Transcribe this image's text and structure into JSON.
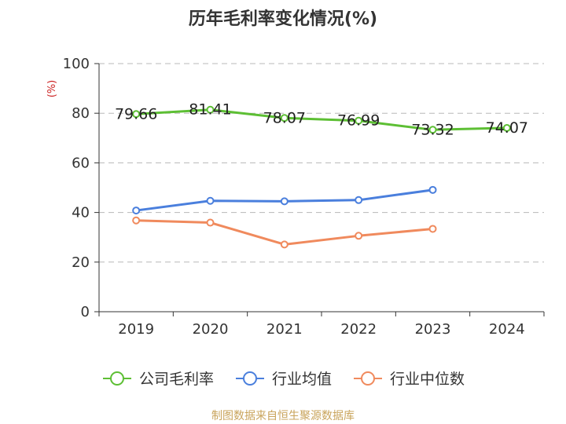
{
  "chart_data": {
    "type": "line",
    "title": "历年毛利率变化情况(%)",
    "ylabel": "(%)",
    "xlabel": "",
    "categories": [
      "2019",
      "2020",
      "2021",
      "2022",
      "2023",
      "2024"
    ],
    "ylim": [
      0,
      100
    ],
    "yticks": [
      0,
      20,
      40,
      60,
      80,
      100
    ],
    "grid": true,
    "legend_position": "bottom",
    "series": [
      {
        "name": "公司毛利率",
        "color": "#5dbf34",
        "values": [
          79.66,
          81.41,
          78.07,
          76.99,
          73.32,
          74.07
        ],
        "show_labels": true
      },
      {
        "name": "行业均值",
        "color": "#4a7fdd",
        "values": [
          40.8,
          44.7,
          44.5,
          45.0,
          49.1,
          null
        ],
        "show_labels": false
      },
      {
        "name": "行业中位数",
        "color": "#f08a5d",
        "values": [
          36.8,
          35.9,
          27.1,
          30.6,
          33.4,
          null
        ],
        "show_labels": false
      }
    ]
  },
  "source": "制图数据来自恒生聚源数据库"
}
